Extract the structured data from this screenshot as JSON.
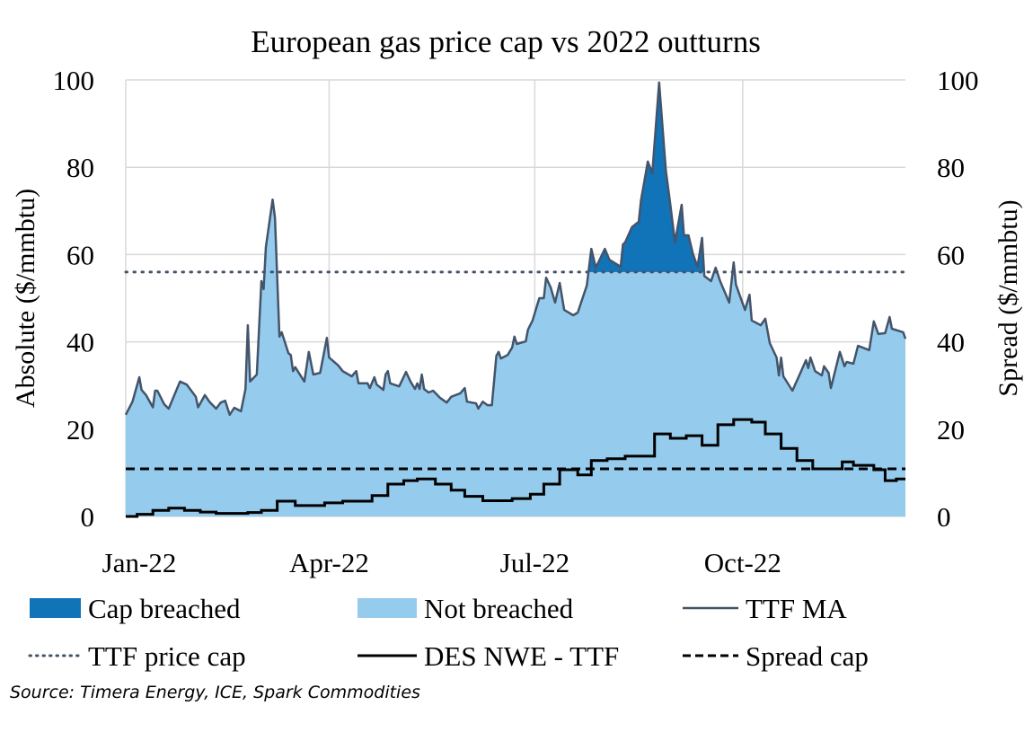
{
  "chart_data": {
    "type": "area",
    "title": "European gas price cap vs 2022 outturns",
    "ylabel_left": "Absolute ($/mmbtu)",
    "ylabel_right": "Spread ($/mmbtu)",
    "ylim": [
      0,
      100
    ],
    "yticks": [
      "0",
      "20",
      "40",
      "60",
      "80",
      "100"
    ],
    "xlim": [
      "2022-01-01",
      "2022-12-12"
    ],
    "xticks": [
      {
        "label": "Jan-22",
        "date": "2022-01-01"
      },
      {
        "label": "Apr-22",
        "date": "2022-04-01"
      },
      {
        "label": "Jul-22",
        "date": "2022-07-01"
      },
      {
        "label": "Oct-22",
        "date": "2022-10-01"
      }
    ],
    "grid": true,
    "legend_position": "bottom",
    "colors": {
      "cap_breached": "#1173B8",
      "not_breached": "#95CCEE",
      "ttf_ma": "#44546A",
      "ttf_price_cap": "#44546A",
      "spread": "#000000",
      "spread_cap": "#000000",
      "grid": "#D9D9D9"
    },
    "legend": {
      "cap_breached": "Cap breached",
      "not_breached": "Not breached",
      "ttf_ma": "TTF MA",
      "ttf_price_cap": "TTF price cap",
      "spread": "DES NWE - TTF",
      "spread_cap": "Spread cap"
    },
    "ttf_price_cap": 56,
    "spread_cap": 10.9,
    "breach_window": [
      "2022-07-26",
      "2022-09-14"
    ],
    "ttf_ma": [
      [
        "2022-01-01",
        23.3
      ],
      [
        "2022-01-04",
        26.3
      ],
      [
        "2022-01-07",
        31.9
      ],
      [
        "2022-01-08",
        29
      ],
      [
        "2022-01-10",
        27.8
      ],
      [
        "2022-01-13",
        25
      ],
      [
        "2022-01-14",
        28.8
      ],
      [
        "2022-01-15",
        28.8
      ],
      [
        "2022-01-18",
        25.7
      ],
      [
        "2022-01-20",
        24.7
      ],
      [
        "2022-01-25",
        30.9
      ],
      [
        "2022-01-28",
        30.2
      ],
      [
        "2022-02-01",
        27.4
      ],
      [
        "2022-02-02",
        25
      ],
      [
        "2022-02-05",
        27.8
      ],
      [
        "2022-02-07",
        26.3
      ],
      [
        "2022-02-10",
        24.7
      ],
      [
        "2022-02-12",
        26.1
      ],
      [
        "2022-02-14",
        26.5
      ],
      [
        "2022-02-16",
        23.3
      ],
      [
        "2022-02-18",
        24.9
      ],
      [
        "2022-02-21",
        24.1
      ],
      [
        "2022-02-23",
        29.2
      ],
      [
        "2022-02-24",
        43.8
      ],
      [
        "2022-02-25",
        30.9
      ],
      [
        "2022-02-28",
        32.5
      ],
      [
        "2022-03-02",
        53.9
      ],
      [
        "2022-03-03",
        52.1
      ],
      [
        "2022-03-04",
        61.7
      ],
      [
        "2022-03-07",
        72.6
      ],
      [
        "2022-03-08",
        68.5
      ],
      [
        "2022-03-10",
        41.2
      ],
      [
        "2022-03-11",
        42.2
      ],
      [
        "2022-03-14",
        37.4
      ],
      [
        "2022-03-15",
        37
      ],
      [
        "2022-03-16",
        33.3
      ],
      [
        "2022-03-17",
        34.2
      ],
      [
        "2022-03-21",
        30.9
      ],
      [
        "2022-03-23",
        37.7
      ],
      [
        "2022-03-25",
        32.5
      ],
      [
        "2022-03-28",
        32.9
      ],
      [
        "2022-03-31",
        40.9
      ],
      [
        "2022-04-01",
        36.4
      ],
      [
        "2022-04-05",
        34.6
      ],
      [
        "2022-04-07",
        33.3
      ],
      [
        "2022-04-11",
        32.1
      ],
      [
        "2022-04-13",
        33.3
      ],
      [
        "2022-04-14",
        30.5
      ],
      [
        "2022-04-18",
        30.5
      ],
      [
        "2022-04-19",
        29.4
      ],
      [
        "2022-04-21",
        31.9
      ],
      [
        "2022-04-22",
        30.2
      ],
      [
        "2022-04-25",
        29
      ],
      [
        "2022-04-26",
        32.5
      ],
      [
        "2022-04-27",
        33.3
      ],
      [
        "2022-04-28",
        30.5
      ],
      [
        "2022-05-02",
        29.8
      ],
      [
        "2022-05-05",
        33.1
      ],
      [
        "2022-05-07",
        30.9
      ],
      [
        "2022-05-09",
        29.2
      ],
      [
        "2022-05-10",
        30.5
      ],
      [
        "2022-05-11",
        29.2
      ],
      [
        "2022-05-12",
        32.5
      ],
      [
        "2022-05-13",
        29.2
      ],
      [
        "2022-05-15",
        28.4
      ],
      [
        "2022-05-17",
        28.8
      ],
      [
        "2022-05-20",
        27.2
      ],
      [
        "2022-05-23",
        26.1
      ],
      [
        "2022-05-25",
        27.4
      ],
      [
        "2022-05-29",
        28.2
      ],
      [
        "2022-05-31",
        29.4
      ],
      [
        "2022-06-01",
        26.3
      ],
      [
        "2022-06-05",
        25.9
      ],
      [
        "2022-06-06",
        24.7
      ],
      [
        "2022-06-08",
        26.3
      ],
      [
        "2022-06-10",
        25.5
      ],
      [
        "2022-06-12",
        25.5
      ],
      [
        "2022-06-14",
        36.8
      ],
      [
        "2022-06-15",
        37.7
      ],
      [
        "2022-06-16",
        36.2
      ],
      [
        "2022-06-19",
        37
      ],
      [
        "2022-06-21",
        38.7
      ],
      [
        "2022-06-22",
        41.2
      ],
      [
        "2022-06-23",
        39.5
      ],
      [
        "2022-06-27",
        40.1
      ],
      [
        "2022-06-28",
        42.8
      ],
      [
        "2022-06-30",
        44.9
      ],
      [
        "2022-07-03",
        50
      ],
      [
        "2022-07-05",
        50
      ],
      [
        "2022-07-06",
        54.7
      ],
      [
        "2022-07-08",
        52.5
      ],
      [
        "2022-07-10",
        49
      ],
      [
        "2022-07-12",
        53.5
      ],
      [
        "2022-07-14",
        47.3
      ],
      [
        "2022-07-18",
        46.1
      ],
      [
        "2022-07-20",
        46.7
      ],
      [
        "2022-07-24",
        52.9
      ],
      [
        "2022-07-26",
        61.3
      ],
      [
        "2022-07-28",
        57
      ],
      [
        "2022-08-01",
        61.3
      ],
      [
        "2022-08-03",
        58.8
      ],
      [
        "2022-08-08",
        57.2
      ],
      [
        "2022-08-09",
        62.3
      ],
      [
        "2022-08-10",
        62.8
      ],
      [
        "2022-08-13",
        66.3
      ],
      [
        "2022-08-16",
        67.5
      ],
      [
        "2022-08-17",
        72.4
      ],
      [
        "2022-08-20",
        81.3
      ],
      [
        "2022-08-22",
        78.6
      ],
      [
        "2022-08-25",
        99.4
      ],
      [
        "2022-08-28",
        79.2
      ],
      [
        "2022-08-30",
        71.4
      ],
      [
        "2022-09-01",
        62.8
      ],
      [
        "2022-09-04",
        71.4
      ],
      [
        "2022-09-05",
        64.4
      ],
      [
        "2022-09-07",
        64.4
      ],
      [
        "2022-09-09",
        60.1
      ],
      [
        "2022-09-11",
        57.2
      ],
      [
        "2022-09-13",
        63.8
      ],
      [
        "2022-09-14",
        55.1
      ],
      [
        "2022-09-17",
        53.9
      ],
      [
        "2022-09-19",
        57
      ],
      [
        "2022-09-21",
        53.9
      ],
      [
        "2022-09-25",
        49
      ],
      [
        "2022-09-27",
        58.2
      ],
      [
        "2022-09-28",
        53.1
      ],
      [
        "2022-10-02",
        47.3
      ],
      [
        "2022-10-04",
        50.8
      ],
      [
        "2022-10-05",
        44.9
      ],
      [
        "2022-10-09",
        43.8
      ],
      [
        "2022-10-11",
        45.3
      ],
      [
        "2022-10-13",
        39.7
      ],
      [
        "2022-10-16",
        36.4
      ],
      [
        "2022-10-17",
        32.3
      ],
      [
        "2022-10-18",
        36.4
      ],
      [
        "2022-10-19",
        32.1
      ],
      [
        "2022-10-23",
        28.8
      ],
      [
        "2022-10-26",
        32.3
      ],
      [
        "2022-10-29",
        35.8
      ],
      [
        "2022-10-30",
        34
      ],
      [
        "2022-10-31",
        36.4
      ],
      [
        "2022-11-02",
        33.3
      ],
      [
        "2022-11-05",
        32.3
      ],
      [
        "2022-11-06",
        34.4
      ],
      [
        "2022-11-08",
        32.9
      ],
      [
        "2022-11-09",
        29.4
      ],
      [
        "2022-11-13",
        37.7
      ],
      [
        "2022-11-15",
        34.4
      ],
      [
        "2022-11-16",
        35.4
      ],
      [
        "2022-11-19",
        35
      ],
      [
        "2022-11-21",
        39.1
      ],
      [
        "2022-11-26",
        38.1
      ],
      [
        "2022-11-28",
        44.7
      ],
      [
        "2022-11-30",
        41.8
      ],
      [
        "2022-12-03",
        42
      ],
      [
        "2022-12-05",
        45.7
      ],
      [
        "2022-12-06",
        43
      ],
      [
        "2022-12-11",
        42.2
      ],
      [
        "2022-12-12",
        40.7
      ]
    ],
    "des_nwe_ttf_spread": [
      [
        "2022-01-01",
        0
      ],
      [
        "2022-01-06",
        0.5
      ],
      [
        "2022-01-13",
        1.4
      ],
      [
        "2022-01-20",
        1.9
      ],
      [
        "2022-01-27",
        1.4
      ],
      [
        "2022-02-03",
        1.0
      ],
      [
        "2022-02-10",
        0.7
      ],
      [
        "2022-02-24",
        0.9
      ],
      [
        "2022-03-02",
        1.4
      ],
      [
        "2022-03-09",
        3.5
      ],
      [
        "2022-03-17",
        2.5
      ],
      [
        "2022-03-30",
        3.1
      ],
      [
        "2022-04-07",
        3.5
      ],
      [
        "2022-04-20",
        4.8
      ],
      [
        "2022-04-27",
        7.4
      ],
      [
        "2022-05-04",
        8.2
      ],
      [
        "2022-05-10",
        8.6
      ],
      [
        "2022-05-18",
        7.4
      ],
      [
        "2022-05-25",
        6.0
      ],
      [
        "2022-05-31",
        4.6
      ],
      [
        "2022-06-08",
        3.6
      ],
      [
        "2022-06-15",
        3.6
      ],
      [
        "2022-06-21",
        4.1
      ],
      [
        "2022-06-29",
        5.1
      ],
      [
        "2022-07-05",
        7.4
      ],
      [
        "2022-07-12",
        10.7
      ],
      [
        "2022-07-20",
        9.5
      ],
      [
        "2022-07-26",
        12.8
      ],
      [
        "2022-08-02",
        13.2
      ],
      [
        "2022-08-10",
        13.8
      ],
      [
        "2022-08-23",
        18.9
      ],
      [
        "2022-08-30",
        17.9
      ],
      [
        "2022-09-06",
        18.5
      ],
      [
        "2022-09-13",
        16.3
      ],
      [
        "2022-09-20",
        21.0
      ],
      [
        "2022-09-27",
        22.2
      ],
      [
        "2022-10-05",
        21.6
      ],
      [
        "2022-10-11",
        18.9
      ],
      [
        "2022-10-18",
        15.6
      ],
      [
        "2022-10-25",
        12.8
      ],
      [
        "2022-11-01",
        10.9
      ],
      [
        "2022-11-14",
        12.5
      ],
      [
        "2022-11-19",
        11.7
      ],
      [
        "2022-11-28",
        10.7
      ],
      [
        "2022-12-03",
        8.2
      ],
      [
        "2022-12-08",
        8.6
      ],
      [
        "2022-12-12",
        8.6
      ]
    ]
  },
  "source": "Source: Timera Energy, ICE, Spark Commodities"
}
